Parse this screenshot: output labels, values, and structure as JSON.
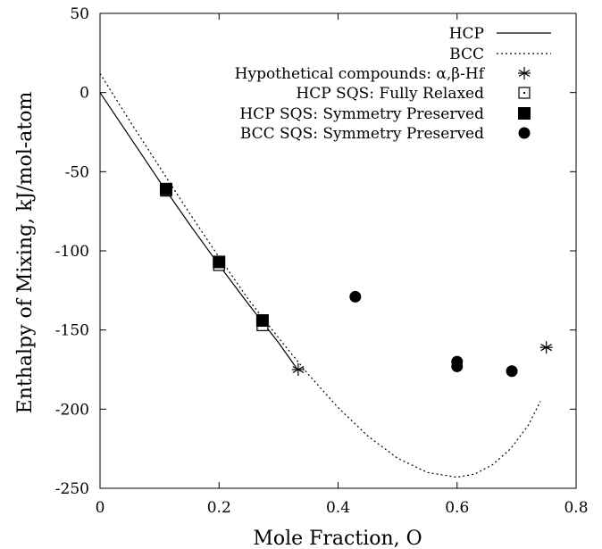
{
  "chart_data": {
    "type": "scatter",
    "xlabel": "Mole Fraction, O",
    "ylabel": "Enthalpy of Mixing, kJ/mol-atom",
    "xlim": [
      0,
      0.8
    ],
    "ylim": [
      -250,
      50
    ],
    "xticks": [
      0,
      0.2,
      0.4,
      0.6,
      0.8
    ],
    "xtick_labels": [
      "0",
      "0.2",
      "0.4",
      "0.6",
      "0.8"
    ],
    "yticks": [
      -250,
      -200,
      -150,
      -100,
      -50,
      0,
      50
    ],
    "ytick_labels": [
      "-250",
      "-200",
      "-150",
      "-100",
      "-50",
      "0",
      "50"
    ],
    "legend_position": "top-right",
    "series": [
      {
        "name": "HCP",
        "kind": "line",
        "style": "solid",
        "x": [
          0,
          0.05,
          0.1,
          0.15,
          0.2,
          0.25,
          0.3,
          0.332
        ],
        "y": [
          0,
          -28,
          -56,
          -83,
          -109,
          -134,
          -158,
          -175
        ]
      },
      {
        "name": "BCC",
        "kind": "line",
        "style": "dotted",
        "x": [
          0,
          0.05,
          0.1,
          0.15,
          0.2,
          0.25,
          0.3,
          0.35,
          0.4,
          0.45,
          0.5,
          0.55,
          0.6,
          0.63,
          0.66,
          0.69,
          0.72,
          0.74
        ],
        "y": [
          12,
          -18,
          -47,
          -76,
          -104,
          -131,
          -155,
          -178,
          -199,
          -217,
          -231,
          -240,
          -243,
          -241,
          -235,
          -225,
          -210,
          -195
        ]
      },
      {
        "name": "Hypothetical compounds: α,β-Hf",
        "kind": "points",
        "marker": "asterisk",
        "x": [
          0.333,
          0.75
        ],
        "y": [
          -175,
          -161
        ]
      },
      {
        "name": "HCP SQS: Fully Relaxed",
        "kind": "points",
        "marker": "open-square",
        "x": [
          0.111,
          0.2,
          0.273
        ],
        "y": [
          -62,
          -109,
          -147
        ]
      },
      {
        "name": "HCP SQS: Symmetry Preserved",
        "kind": "points",
        "marker": "filled-square",
        "x": [
          0.111,
          0.2,
          0.273
        ],
        "y": [
          -61,
          -107,
          -144
        ]
      },
      {
        "name": "BCC SQS: Symmetry Preserved",
        "kind": "points",
        "marker": "filled-circle",
        "x": [
          0.429,
          0.6,
          0.6,
          0.692
        ],
        "y": [
          -129,
          -170,
          -173,
          -176
        ]
      }
    ]
  }
}
